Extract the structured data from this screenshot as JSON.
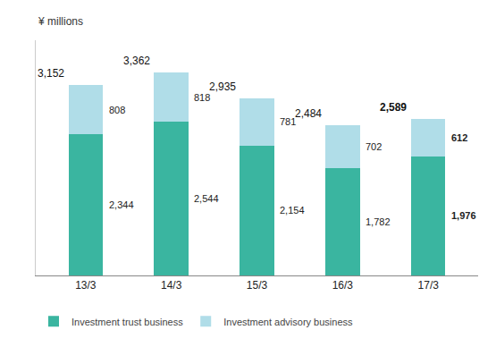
{
  "chart_data": {
    "type": "bar",
    "stacked": true,
    "ylabel": "¥ millions",
    "categories": [
      "13/3",
      "14/3",
      "15/3",
      "16/3",
      "17/3"
    ],
    "series": [
      {
        "name": "Investment trust business",
        "color": "#3ab5a0",
        "values": [
          2344,
          2544,
          2154,
          1782,
          1976
        ],
        "value_labels": [
          "2,344",
          "2,544",
          "2,154",
          "1,782",
          "1,976"
        ]
      },
      {
        "name": "Investment advisory business",
        "color": "#b0dde8",
        "values": [
          808,
          818,
          781,
          702,
          612
        ]
      }
    ],
    "totals": [
      3152,
      3362,
      2935,
      2484,
      2589
    ],
    "total_labels": [
      "3,152",
      "3,362",
      "2,935",
      "2,484",
      "2,589"
    ],
    "ylim": [
      0,
      3900
    ],
    "data_labels": true,
    "tick_labels": "x",
    "grid": false,
    "legend": "lower left"
  }
}
